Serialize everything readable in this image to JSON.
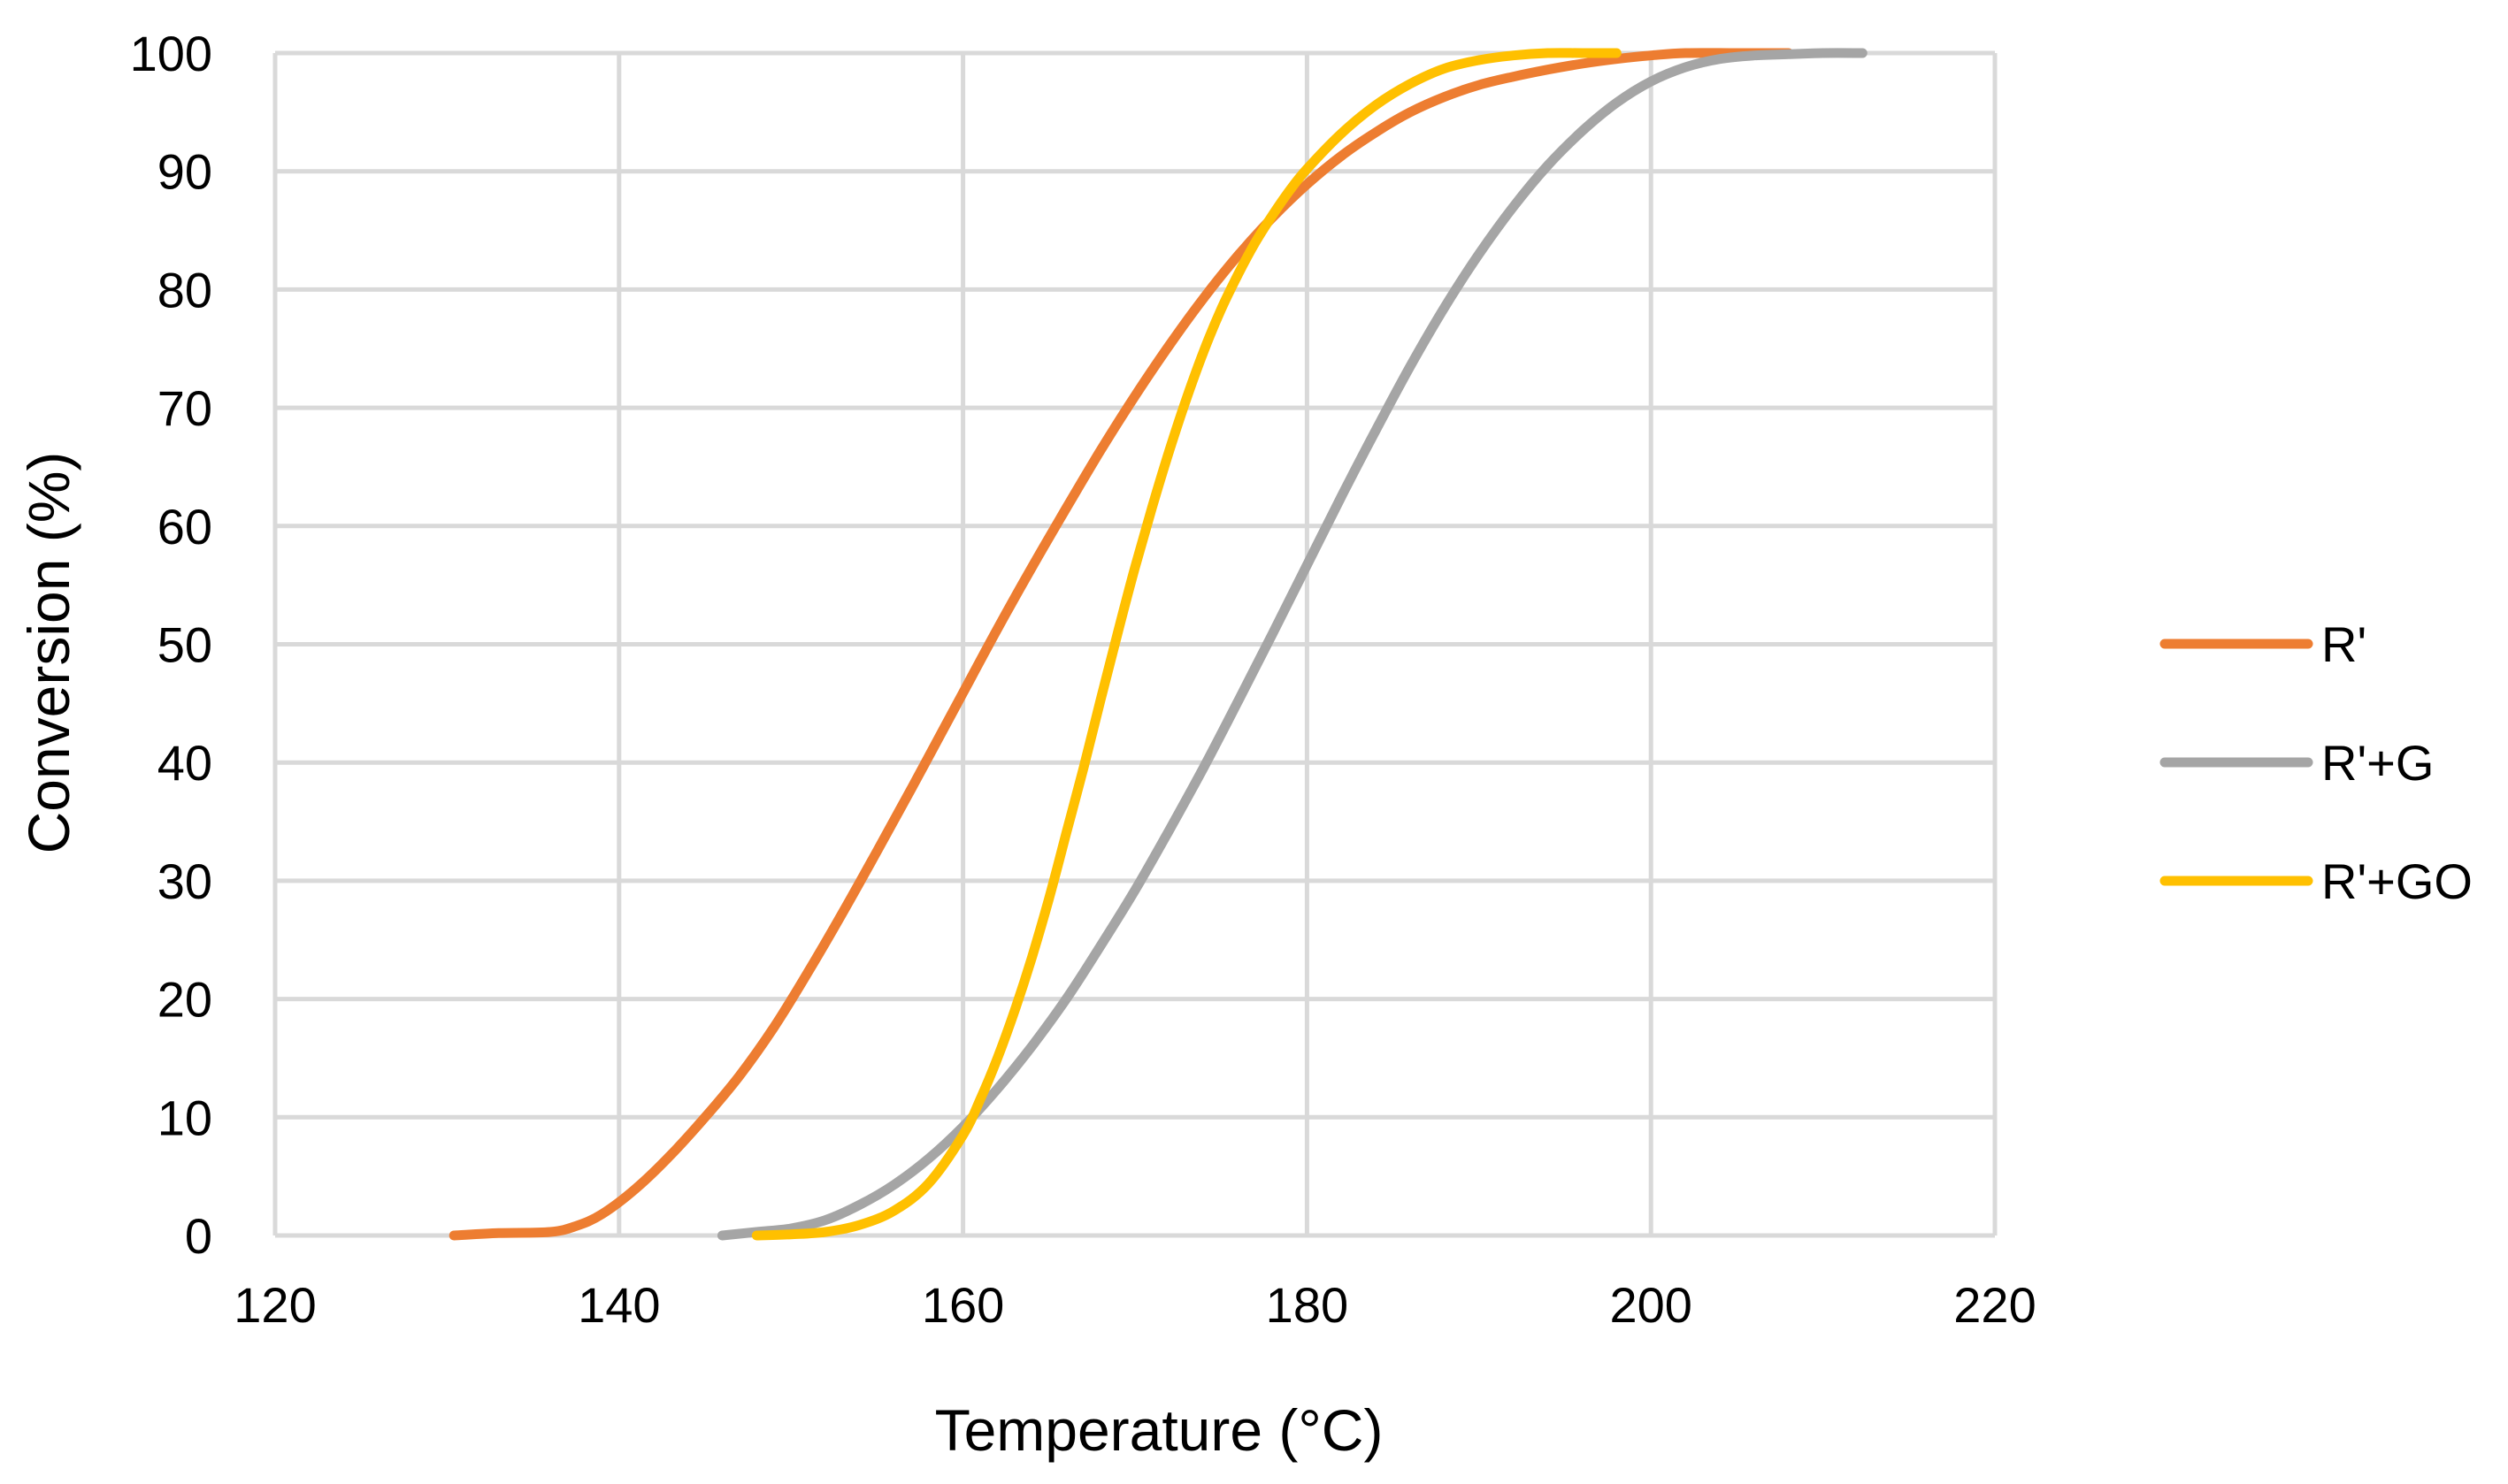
{
  "chart_data": {
    "type": "line",
    "title": "",
    "xlabel": "Temperature (°C)",
    "ylabel": "Conversion (%)",
    "xlim": [
      120,
      220
    ],
    "ylim": [
      0,
      100
    ],
    "x_ticks": [
      "120",
      "140",
      "160",
      "180",
      "200",
      "220"
    ],
    "y_ticks": [
      "0",
      "10",
      "20",
      "30",
      "40",
      "50",
      "60",
      "70",
      "80",
      "90",
      "100"
    ],
    "grid": true,
    "legend_position": "right",
    "series": [
      {
        "name": "R'",
        "color": "#ED7D31",
        "x": [
          130.4,
          133,
          136,
          137.5,
          139,
          141,
          143,
          145,
          147,
          149,
          151,
          153,
          155,
          157,
          159,
          160,
          162,
          164,
          166,
          168,
          170,
          172,
          174,
          176,
          178,
          180,
          182,
          184,
          186,
          188,
          190,
          192,
          194,
          196,
          198,
          200,
          202,
          205,
          208
        ],
        "y": [
          0,
          0.2,
          0.3,
          0.8,
          1.8,
          4,
          6.8,
          10,
          13.5,
          17.6,
          22.3,
          27.3,
          32.5,
          37.8,
          43.2,
          45.9,
          51.3,
          56.5,
          61.5,
          66.4,
          71,
          75.3,
          79.3,
          82.9,
          86.1,
          88.9,
          91.3,
          93.3,
          95,
          96.3,
          97.3,
          98,
          98.6,
          99.1,
          99.5,
          99.8,
          100,
          100,
          100
        ]
      },
      {
        "name": "R'+G",
        "color": "#A5A5A5",
        "x": [
          146,
          148,
          150,
          152,
          154,
          156,
          158,
          160,
          162,
          164,
          166,
          168,
          170,
          172,
          174,
          176,
          178,
          180,
          182,
          184,
          186,
          188,
          190,
          192,
          194,
          196,
          198,
          200,
          202,
          204,
          206,
          208,
          210,
          212.3
        ],
        "y": [
          0,
          0.3,
          0.6,
          1.3,
          2.6,
          4.3,
          6.5,
          9.2,
          12.4,
          16,
          20,
          24.5,
          29.2,
          34.3,
          39.6,
          45.2,
          50.9,
          56.7,
          62.5,
          68.1,
          73.5,
          78.5,
          83,
          87,
          90.5,
          93.4,
          95.8,
          97.6,
          98.8,
          99.5,
          99.8,
          99.9,
          100,
          100
        ]
      },
      {
        "name": "R'+GO",
        "color": "#FFC000",
        "x": [
          148,
          150,
          152,
          154,
          156,
          158,
          160,
          161,
          162,
          163,
          164,
          165,
          166,
          167,
          168,
          169,
          170,
          171,
          172,
          173,
          174,
          175,
          176,
          177,
          178,
          179,
          180,
          182,
          184,
          186,
          188,
          190,
          192,
          194,
          196,
          198
        ],
        "y": [
          0,
          0.1,
          0.3,
          0.9,
          2.1,
          4.4,
          8.5,
          11.5,
          15,
          19,
          23.5,
          28.5,
          34,
          39.5,
          45.3,
          51,
          56.5,
          61.6,
          66.4,
          70.8,
          74.8,
          78.3,
          81.3,
          84,
          86.3,
          88.4,
          90.2,
          93.2,
          95.6,
          97.4,
          98.7,
          99.4,
          99.8,
          100,
          100,
          100
        ]
      }
    ]
  }
}
